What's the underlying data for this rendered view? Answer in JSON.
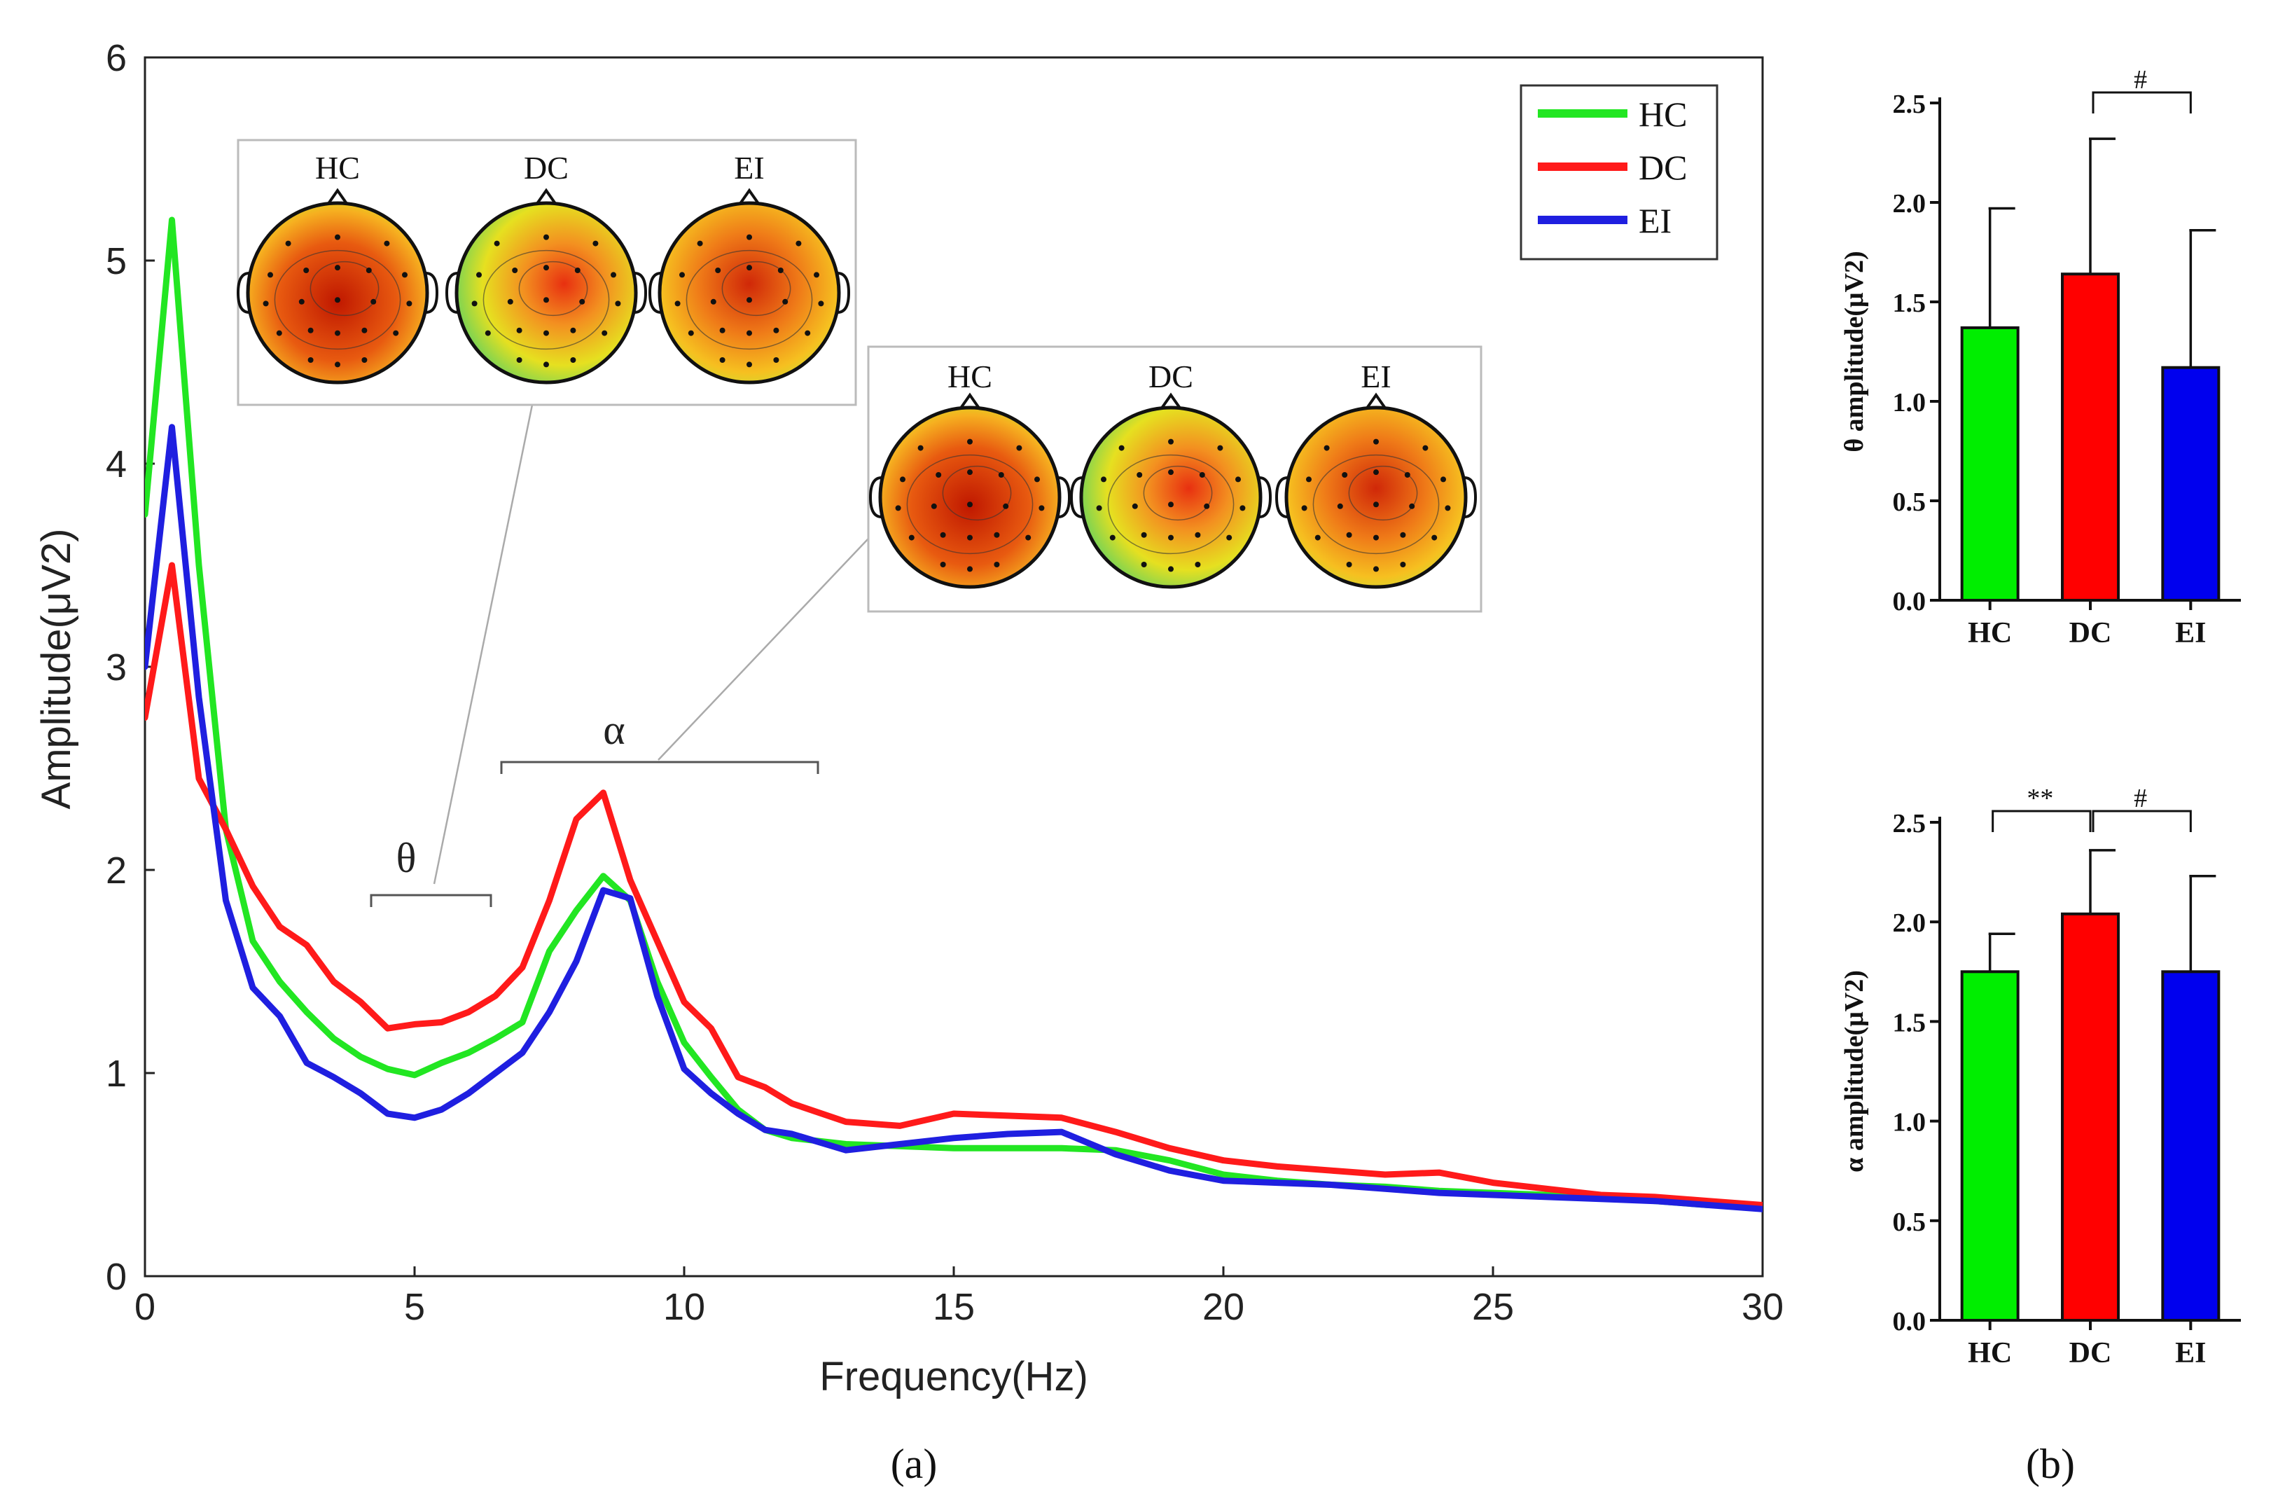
{
  "chart_data": [
    {
      "panel": "a",
      "panel_label": "(a)",
      "type": "line",
      "xlabel": "Frequency(Hz)",
      "ylabel": "Amplitude(μV2)",
      "xlim": [
        0,
        30
      ],
      "ylim": [
        0,
        6
      ],
      "xticks": [
        "0",
        "5",
        "10",
        "15",
        "20",
        "25",
        "30"
      ],
      "yticks": [
        "0",
        "1",
        "2",
        "3",
        "4",
        "5",
        "6"
      ],
      "legend": {
        "position": "top-right",
        "labels": [
          "HC",
          "DC",
          "EI"
        ]
      },
      "colors": {
        "HC": "#22e622",
        "DC": "#ff1a1a",
        "EI": "#1f1fe0"
      },
      "series": [
        {
          "name": "HC",
          "x": [
            0,
            0.5,
            1.0,
            1.5,
            2.0,
            2.5,
            3.0,
            3.5,
            4.0,
            4.5,
            5.0,
            5.5,
            6.0,
            6.5,
            7.0,
            7.5,
            8.0,
            8.5,
            9.0,
            9.5,
            10.0,
            10.5,
            11.0,
            11.5,
            12.0,
            13.0,
            14.0,
            15.0,
            16.0,
            17.0,
            18.0,
            19.0,
            20.0,
            21.0,
            22.0,
            23.0,
            24.0,
            25.0,
            26.0,
            27.0,
            28.0,
            29.0,
            30.0
          ],
          "y": [
            3.75,
            5.2,
            3.5,
            2.2,
            1.65,
            1.45,
            1.3,
            1.17,
            1.08,
            1.02,
            0.99,
            1.05,
            1.1,
            1.17,
            1.25,
            1.6,
            1.8,
            1.97,
            1.85,
            1.45,
            1.15,
            0.98,
            0.82,
            0.72,
            0.68,
            0.65,
            0.64,
            0.63,
            0.63,
            0.63,
            0.62,
            0.57,
            0.5,
            0.47,
            0.45,
            0.44,
            0.42,
            0.41,
            0.4,
            0.39,
            0.37,
            0.35,
            0.35
          ]
        },
        {
          "name": "DC",
          "x": [
            0,
            0.5,
            1.0,
            1.5,
            2.0,
            2.5,
            3.0,
            3.5,
            4.0,
            4.5,
            5.0,
            5.5,
            6.0,
            6.5,
            7.0,
            7.5,
            8.0,
            8.5,
            9.0,
            9.5,
            10.0,
            10.5,
            11.0,
            11.5,
            12.0,
            13.0,
            14.0,
            15.0,
            16.0,
            17.0,
            18.0,
            19.0,
            20.0,
            21.0,
            22.0,
            23.0,
            24.0,
            25.0,
            26.0,
            27.0,
            28.0,
            29.0,
            30.0
          ],
          "y": [
            2.75,
            3.5,
            2.45,
            2.2,
            1.92,
            1.72,
            1.63,
            1.45,
            1.35,
            1.22,
            1.24,
            1.25,
            1.3,
            1.38,
            1.52,
            1.85,
            2.25,
            2.38,
            1.95,
            1.65,
            1.35,
            1.22,
            0.98,
            0.93,
            0.85,
            0.76,
            0.74,
            0.8,
            0.79,
            0.78,
            0.71,
            0.63,
            0.57,
            0.54,
            0.52,
            0.5,
            0.51,
            0.46,
            0.43,
            0.4,
            0.39,
            0.37,
            0.35
          ]
        },
        {
          "name": "EI",
          "x": [
            0,
            0.5,
            1.0,
            1.5,
            2.0,
            2.5,
            3.0,
            3.5,
            4.0,
            4.5,
            5.0,
            5.5,
            6.0,
            6.5,
            7.0,
            7.5,
            8.0,
            8.5,
            9.0,
            9.5,
            10.0,
            10.5,
            11.0,
            11.5,
            12.0,
            13.0,
            14.0,
            15.0,
            16.0,
            17.0,
            18.0,
            19.0,
            20.0,
            21.0,
            22.0,
            23.0,
            24.0,
            25.0,
            26.0,
            27.0,
            28.0,
            29.0,
            30.0
          ],
          "y": [
            3.0,
            4.18,
            2.85,
            1.85,
            1.42,
            1.28,
            1.05,
            0.98,
            0.9,
            0.8,
            0.78,
            0.82,
            0.9,
            1.0,
            1.1,
            1.3,
            1.55,
            1.9,
            1.86,
            1.38,
            1.02,
            0.9,
            0.8,
            0.72,
            0.7,
            0.62,
            0.65,
            0.68,
            0.7,
            0.71,
            0.6,
            0.52,
            0.47,
            0.46,
            0.45,
            0.43,
            0.41,
            0.4,
            0.39,
            0.38,
            0.37,
            0.35,
            0.33
          ]
        }
      ],
      "annotations": {
        "theta": {
          "symbol": "θ",
          "range": [
            4.2,
            6.5
          ]
        },
        "alpha": {
          "symbol": "α",
          "range": [
            6.7,
            12.5
          ]
        }
      },
      "insets": [
        {
          "band": "theta",
          "labels": [
            "HC",
            "DC",
            "EI"
          ]
        },
        {
          "band": "alpha",
          "labels": [
            "HC",
            "DC",
            "EI"
          ]
        }
      ]
    },
    {
      "panel": "b-top",
      "type": "bar",
      "categories": [
        "HC",
        "DC",
        "EI"
      ],
      "values": [
        1.37,
        1.64,
        1.17
      ],
      "errors": [
        0.6,
        0.68,
        0.69
      ],
      "colors": [
        "#00ee00",
        "#ff0000",
        "#0000ee"
      ],
      "ylabel": "θ amplitude(μV2)",
      "ylim": [
        0,
        2.5
      ],
      "yticks": [
        "0.0",
        "0.5",
        "1.0",
        "1.5",
        "2.0",
        "2.5"
      ],
      "significance": [
        {
          "from": "DC",
          "to": "EI",
          "label": "#"
        }
      ]
    },
    {
      "panel": "b-bottom",
      "panel_label": "(b)",
      "type": "bar",
      "categories": [
        "HC",
        "DC",
        "EI"
      ],
      "values": [
        1.75,
        2.04,
        1.75
      ],
      "errors": [
        0.19,
        0.32,
        0.48
      ],
      "colors": [
        "#00ee00",
        "#ff0000",
        "#0000ee"
      ],
      "ylabel": "α amplitude(μV2)",
      "ylim": [
        0,
        2.5
      ],
      "yticks": [
        "0.0",
        "0.5",
        "1.0",
        "1.5",
        "2.0",
        "2.5"
      ],
      "significance": [
        {
          "from": "HC",
          "to": "DC",
          "label": "**"
        },
        {
          "from": "DC",
          "to": "EI",
          "label": "#"
        }
      ]
    }
  ]
}
